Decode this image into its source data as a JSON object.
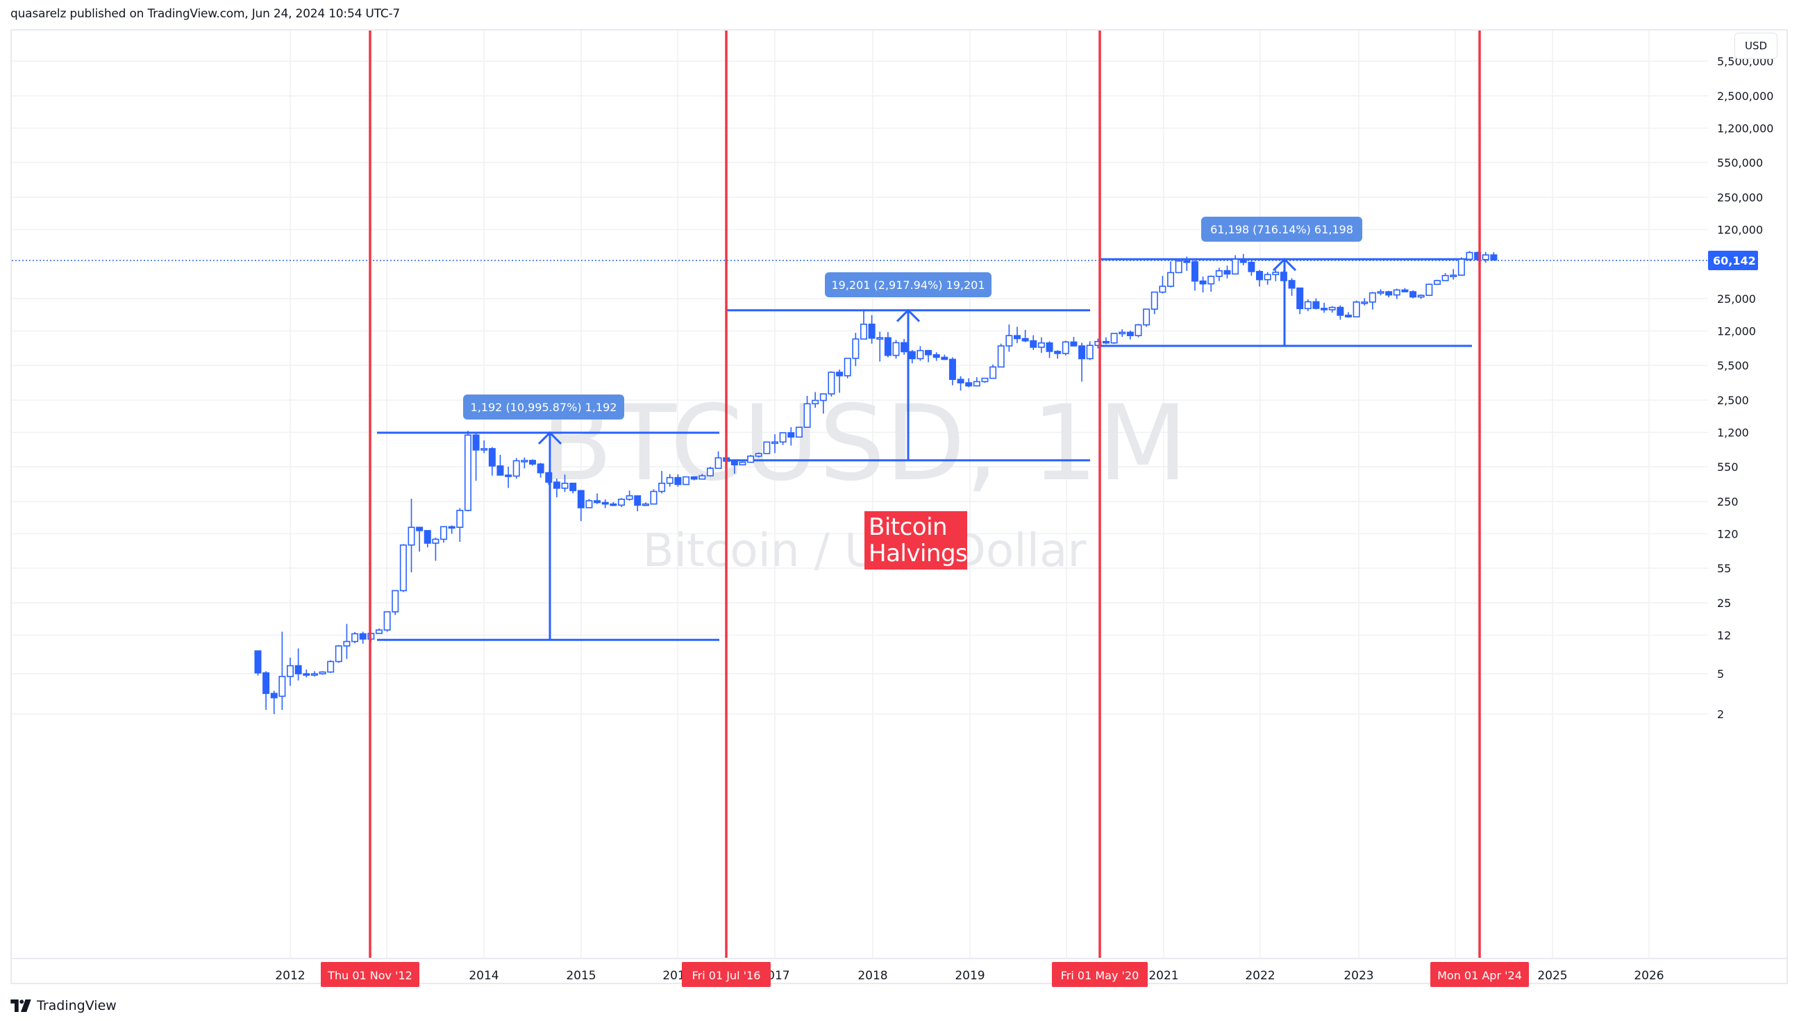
{
  "header": {
    "text": "quasarelz published on TradingView.com, Jun 24, 2024 10:54 UTC-7"
  },
  "footer": {
    "brand": "TradingView",
    "logo_icon": "tradingview-logo-icon"
  },
  "price_axis": {
    "currency_button": "USD",
    "ticks": [
      "5,500,000",
      "2,500,000",
      "1,200,000",
      "550,000",
      "250,000",
      "120,000",
      "25,000",
      "12,000",
      "5,500",
      "2,500",
      "1,200",
      "550",
      "250",
      "120",
      "55",
      "25",
      "12",
      "5",
      "2"
    ],
    "last_price_label": "60,142"
  },
  "time_axis": {
    "ticks": [
      "2012",
      "2014",
      "2015",
      "2016",
      "2017",
      "2018",
      "2019",
      "2021",
      "2022",
      "2023",
      "2025",
      "2026"
    ]
  },
  "watermark": {
    "symbol": "BTCUSD, 1M",
    "description": "Bitcoin / U.S. Dollar"
  },
  "annotation": {
    "text": "Bitcoin Halvings",
    "line1": "Bitcoin",
    "line2": "Halvings"
  },
  "halvings": [
    {
      "label": "Thu 01 Nov '12"
    },
    {
      "label": "Fri 01 Jul '16"
    },
    {
      "label": "Fri 01 May '20"
    },
    {
      "label": "Mon 01 Apr '24"
    }
  ],
  "measurements": [
    {
      "label": "1,192 (10,995.87%) 1,192"
    },
    {
      "label": "19,201 (2,917.94%) 19,201"
    },
    {
      "label": "61,198 (716.14%) 61,198"
    }
  ],
  "colors": {
    "candle": "#2962ff",
    "halving_line": "#f23645",
    "measure_line": "#2962ff",
    "measure_label_bg": "#5b8fe6",
    "last_price_bg": "#2962ff",
    "grid": "#f0f1f4",
    "watermark": "#e7e8ec"
  },
  "chart_data": {
    "type": "candlestick",
    "title": "BTCUSD, 1M — Bitcoin / U.S. Dollar",
    "xlabel": "",
    "ylabel": "USD",
    "y_scale": "log",
    "ylim": [
      2,
      5500000
    ],
    "x_range": [
      "2011-06",
      "2026-06"
    ],
    "grid": true,
    "last_price": 60142,
    "x_ticks": [
      "2012",
      "2014",
      "2015",
      "2016",
      "2017",
      "2018",
      "2019",
      "2021",
      "2022",
      "2023",
      "2025",
      "2026"
    ],
    "y_ticks": [
      2,
      5,
      12,
      25,
      55,
      120,
      250,
      550,
      1200,
      2500,
      5500,
      12000,
      25000,
      60142,
      120000,
      250000,
      550000,
      1200000,
      2500000
    ],
    "halving_dates": [
      "2012-11-01",
      "2016-07-01",
      "2020-05-01",
      "2024-04-01"
    ],
    "measurements": [
      {
        "from_price": 10.8,
        "to_price": 1192,
        "change": 1192,
        "percent": 10995.87,
        "x_start": "2012-11",
        "x_end": "2016-07"
      },
      {
        "from_price": 636,
        "to_price": 19201,
        "change": 19201,
        "percent": 2917.94,
        "x_start": "2016-07",
        "x_end": "2020-05"
      },
      {
        "from_price": 8546,
        "to_price": 61198,
        "change": 61198,
        "percent": 716.14,
        "x_start": "2020-05",
        "x_end": "2024-04"
      }
    ],
    "ohlc": [
      [
        "2011-09",
        8.4,
        8.4,
        4.8,
        5.1
      ],
      [
        "2011-10",
        5.1,
        5.3,
        2.2,
        3.2
      ],
      [
        "2011-11",
        3.2,
        3.4,
        2.0,
        2.9
      ],
      [
        "2011-12",
        3.0,
        13.0,
        2.2,
        4.7
      ],
      [
        "2012-01",
        4.7,
        7.2,
        3.8,
        6.0
      ],
      [
        "2012-02",
        6.0,
        8.9,
        4.3,
        5.0
      ],
      [
        "2012-03",
        5.0,
        5.5,
        4.6,
        4.9
      ],
      [
        "2012-04",
        4.9,
        5.3,
        4.7,
        5.0
      ],
      [
        "2012-05",
        5.0,
        5.3,
        4.9,
        5.2
      ],
      [
        "2012-06",
        5.2,
        6.8,
        5.1,
        6.6
      ],
      [
        "2012-07",
        6.6,
        9.6,
        6.4,
        9.4
      ],
      [
        "2012-08",
        9.4,
        15.5,
        7.0,
        10.4
      ],
      [
        "2012-09",
        10.4,
        12.9,
        10.0,
        12.4
      ],
      [
        "2012-10",
        12.4,
        13.0,
        9.9,
        11.0
      ],
      [
        "2012-11",
        11.0,
        12.8,
        10.3,
        12.5
      ],
      [
        "2012-12",
        12.5,
        14.0,
        12.5,
        13.5
      ],
      [
        "2013-01",
        13.5,
        20.5,
        13.0,
        20.4
      ],
      [
        "2013-02",
        20.4,
        33.0,
        19.0,
        33.0
      ],
      [
        "2013-03",
        33.0,
        95.0,
        32.0,
        93.0
      ],
      [
        "2013-04",
        93.0,
        266.0,
        50.0,
        139.0
      ],
      [
        "2013-05",
        139.0,
        140.0,
        80.0,
        129.0
      ],
      [
        "2013-06",
        129.0,
        130.0,
        88.0,
        97.0
      ],
      [
        "2013-07",
        97.0,
        110.0,
        65.0,
        106.0
      ],
      [
        "2013-08",
        106.0,
        140.0,
        98.0,
        141.0
      ],
      [
        "2013-09",
        141.0,
        145.0,
        120.0,
        139.0
      ],
      [
        "2013-10",
        139.0,
        215.0,
        100.0,
        204.0
      ],
      [
        "2013-11",
        204.0,
        1242.0,
        200.0,
        1129.0
      ],
      [
        "2013-12",
        1129.0,
        1163.0,
        400.0,
        805.0
      ],
      [
        "2014-01",
        805.0,
        1000.0,
        750.0,
        830.0
      ],
      [
        "2014-02",
        830.0,
        860.0,
        450.0,
        560.0
      ],
      [
        "2014-03",
        560.0,
        720.0,
        450.0,
        455.0
      ],
      [
        "2014-04",
        455.0,
        550.0,
        340.0,
        445.0
      ],
      [
        "2014-05",
        445.0,
        670.0,
        420.0,
        630.0
      ],
      [
        "2014-06",
        630.0,
        680.0,
        530.0,
        635.0
      ],
      [
        "2014-07",
        635.0,
        650.0,
        565.0,
        585.0
      ],
      [
        "2014-08",
        585.0,
        600.0,
        430.0,
        480.0
      ],
      [
        "2014-09",
        480.0,
        490.0,
        365.0,
        388.0
      ],
      [
        "2014-10",
        388.0,
        420.0,
        275.0,
        338.0
      ],
      [
        "2014-11",
        338.0,
        460.0,
        310.0,
        378.0
      ],
      [
        "2014-12",
        378.0,
        380.0,
        300.0,
        320.0
      ],
      [
        "2015-01",
        320.0,
        320.0,
        160.0,
        217.0
      ],
      [
        "2015-02",
        217.0,
        265.0,
        215.0,
        254.0
      ],
      [
        "2015-03",
        254.0,
        300.0,
        236.0,
        244.0
      ],
      [
        "2015-04",
        244.0,
        262.0,
        215.0,
        236.0
      ],
      [
        "2015-05",
        236.0,
        247.0,
        225.0,
        230.0
      ],
      [
        "2015-06",
        230.0,
        270.0,
        220.0,
        263.0
      ],
      [
        "2015-07",
        263.0,
        320.0,
        255.0,
        284.0
      ],
      [
        "2015-08",
        284.0,
        286.0,
        200.0,
        230.0
      ],
      [
        "2015-09",
        230.0,
        245.0,
        225.0,
        236.0
      ],
      [
        "2015-10",
        236.0,
        330.0,
        235.0,
        314.0
      ],
      [
        "2015-11",
        314.0,
        500.0,
        300.0,
        378.0
      ],
      [
        "2015-12",
        378.0,
        465.0,
        350.0,
        430.0
      ],
      [
        "2016-01",
        430.0,
        463.0,
        350.0,
        368.0
      ],
      [
        "2016-02",
        368.0,
        440.0,
        368.0,
        437.0
      ],
      [
        "2016-03",
        437.0,
        440.0,
        404.0,
        416.0
      ],
      [
        "2016-04",
        416.0,
        468.0,
        414.0,
        448.0
      ],
      [
        "2016-05",
        448.0,
        550.0,
        440.0,
        531.0
      ],
      [
        "2016-06",
        531.0,
        780.0,
        530.0,
        673.0
      ],
      [
        "2016-07",
        673.0,
        700.0,
        600.0,
        624.0
      ],
      [
        "2016-08",
        624.0,
        625.0,
        470.0,
        575.0
      ],
      [
        "2016-09",
        575.0,
        620.0,
        570.0,
        609.0
      ],
      [
        "2016-10",
        609.0,
        720.0,
        605.0,
        700.0
      ],
      [
        "2016-11",
        700.0,
        760.0,
        680.0,
        742.0
      ],
      [
        "2016-12",
        742.0,
        975.0,
        740.0,
        964.0
      ],
      [
        "2017-01",
        964.0,
        1150.0,
        750.0,
        965.0
      ],
      [
        "2017-02",
        965.0,
        1200.0,
        900.0,
        1190.0
      ],
      [
        "2017-03",
        1190.0,
        1350.0,
        890.0,
        1080.0
      ],
      [
        "2017-04",
        1080.0,
        1350.0,
        1070.0,
        1348.0
      ],
      [
        "2017-05",
        1348.0,
        2750.0,
        1340.0,
        2300.0
      ],
      [
        "2017-06",
        2300.0,
        3000.0,
        2100.0,
        2480.0
      ],
      [
        "2017-07",
        2480.0,
        2900.0,
        1840.0,
        2875.0
      ],
      [
        "2017-08",
        2875.0,
        4800.0,
        2700.0,
        4700.0
      ],
      [
        "2017-09",
        4700.0,
        5000.0,
        2950.0,
        4340.0
      ],
      [
        "2017-10",
        4340.0,
        6470.0,
        4100.0,
        6450.0
      ],
      [
        "2017-11",
        6450.0,
        11500.0,
        5400.0,
        10000.0
      ],
      [
        "2017-12",
        10000.0,
        19666.0,
        10000.0,
        14000.0
      ],
      [
        "2018-01",
        14000.0,
        17200.0,
        9000.0,
        10200.0
      ],
      [
        "2018-02",
        10200.0,
        11800.0,
        6000.0,
        10300.0
      ],
      [
        "2018-03",
        10300.0,
        11700.0,
        6600.0,
        6900.0
      ],
      [
        "2018-04",
        6900.0,
        9800.0,
        6400.0,
        9200.0
      ],
      [
        "2018-05",
        9200.0,
        10000.0,
        7000.0,
        7500.0
      ],
      [
        "2018-06",
        7500.0,
        7800.0,
        5750.0,
        6400.0
      ],
      [
        "2018-07",
        6400.0,
        8500.0,
        6100.0,
        7700.0
      ],
      [
        "2018-08",
        7700.0,
        7800.0,
        5900.0,
        7000.0
      ],
      [
        "2018-09",
        7000.0,
        7400.0,
        6100.0,
        6600.0
      ],
      [
        "2018-10",
        6600.0,
        7000.0,
        6200.0,
        6300.0
      ],
      [
        "2018-11",
        6300.0,
        6600.0,
        3500.0,
        4000.0
      ],
      [
        "2018-12",
        4000.0,
        4300.0,
        3100.0,
        3700.0
      ],
      [
        "2019-01",
        3700.0,
        4100.0,
        3350.0,
        3450.0
      ],
      [
        "2019-02",
        3450.0,
        4200.0,
        3400.0,
        3800.0
      ],
      [
        "2019-03",
        3800.0,
        4100.0,
        3700.0,
        4100.0
      ],
      [
        "2019-04",
        4100.0,
        5600.0,
        4100.0,
        5300.0
      ],
      [
        "2019-05",
        5300.0,
        9000.0,
        5300.0,
        8550.0
      ],
      [
        "2019-06",
        8550.0,
        13900.0,
        7500.0,
        10800.0
      ],
      [
        "2019-07",
        10800.0,
        13200.0,
        9100.0,
        10100.0
      ],
      [
        "2019-08",
        10100.0,
        12300.0,
        9300.0,
        9600.0
      ],
      [
        "2019-09",
        9600.0,
        10900.0,
        7800.0,
        8300.0
      ],
      [
        "2019-10",
        8300.0,
        10400.0,
        7300.0,
        9150.0
      ],
      [
        "2019-11",
        9150.0,
        9500.0,
        6500.0,
        7550.0
      ],
      [
        "2019-12",
        7550.0,
        7750.0,
        6400.0,
        7200.0
      ],
      [
        "2020-01",
        7200.0,
        9600.0,
        6900.0,
        9350.0
      ],
      [
        "2020-02",
        9350.0,
        10500.0,
        8500.0,
        8550.0
      ],
      [
        "2020-03",
        8550.0,
        9200.0,
        3800.0,
        6400.0
      ],
      [
        "2020-04",
        6400.0,
        9500.0,
        6200.0,
        8650.0
      ],
      [
        "2020-05",
        8650.0,
        10080.0,
        8100.0,
        9450.0
      ],
      [
        "2020-06",
        9450.0,
        10400.0,
        8900.0,
        9150.0
      ],
      [
        "2020-07",
        9150.0,
        11450.0,
        8950.0,
        11350.0
      ],
      [
        "2020-08",
        11350.0,
        12480.0,
        10500.0,
        11650.0
      ],
      [
        "2020-09",
        11650.0,
        12100.0,
        9900.0,
        10800.0
      ],
      [
        "2020-10",
        10800.0,
        14100.0,
        10400.0,
        13800.0
      ],
      [
        "2020-11",
        13800.0,
        19900.0,
        13200.0,
        19700.0
      ],
      [
        "2020-12",
        19700.0,
        29300.0,
        17600.0,
        29000.0
      ],
      [
        "2021-01",
        29000.0,
        41950.0,
        28100.0,
        33100.0
      ],
      [
        "2021-02",
        33100.0,
        58350.0,
        32300.0,
        45200.0
      ],
      [
        "2021-03",
        45200.0,
        61800.0,
        44950.0,
        58800.0
      ],
      [
        "2021-04",
        58800.0,
        64900.0,
        47000.0,
        57700.0
      ],
      [
        "2021-05",
        57700.0,
        59500.0,
        30000.0,
        37300.0
      ],
      [
        "2021-06",
        37300.0,
        41300.0,
        28800.0,
        35000.0
      ],
      [
        "2021-07",
        35000.0,
        42400.0,
        29300.0,
        41500.0
      ],
      [
        "2021-08",
        41500.0,
        50500.0,
        37300.0,
        47100.0
      ],
      [
        "2021-09",
        47100.0,
        52950.0,
        39600.0,
        43800.0
      ],
      [
        "2021-10",
        43800.0,
        67000.0,
        43300.0,
        61300.0
      ],
      [
        "2021-11",
        61300.0,
        69000.0,
        53300.0,
        57000.0
      ],
      [
        "2021-12",
        57000.0,
        59100.0,
        42000.0,
        46300.0
      ],
      [
        "2022-01",
        46300.0,
        47900.0,
        32950.0,
        38500.0
      ],
      [
        "2022-02",
        38500.0,
        45800.0,
        34300.0,
        43200.0
      ],
      [
        "2022-03",
        43200.0,
        48200.0,
        37200.0,
        45500.0
      ],
      [
        "2022-04",
        45500.0,
        47450.0,
        37600.0,
        37700.0
      ],
      [
        "2022-05",
        37700.0,
        39800.0,
        26700.0,
        31800.0
      ],
      [
        "2022-06",
        31800.0,
        31950.0,
        17600.0,
        19950.0
      ],
      [
        "2022-07",
        19950.0,
        24650.0,
        18800.0,
        23300.0
      ],
      [
        "2022-08",
        23300.0,
        25200.0,
        19550.0,
        20050.0
      ],
      [
        "2022-09",
        20050.0,
        22800.0,
        18150.0,
        19450.0
      ],
      [
        "2022-10",
        19450.0,
        21100.0,
        18200.0,
        20500.0
      ],
      [
        "2022-11",
        20500.0,
        21450.0,
        15500.0,
        17150.0
      ],
      [
        "2022-12",
        17150.0,
        18400.0,
        16250.0,
        16550.0
      ],
      [
        "2023-01",
        16550.0,
        23950.0,
        16500.0,
        23150.0
      ],
      [
        "2023-02",
        23150.0,
        25250.0,
        21400.0,
        23150.0
      ],
      [
        "2023-03",
        23150.0,
        29200.0,
        19550.0,
        28500.0
      ],
      [
        "2023-04",
        28500.0,
        31000.0,
        26950.0,
        29250.0
      ],
      [
        "2023-05",
        29250.0,
        29850.0,
        25800.0,
        27200.0
      ],
      [
        "2023-06",
        27200.0,
        31400.0,
        24800.0,
        30450.0
      ],
      [
        "2023-07",
        30450.0,
        31800.0,
        28850.0,
        29250.0
      ],
      [
        "2023-08",
        29250.0,
        30200.0,
        25150.0,
        26000.0
      ],
      [
        "2023-09",
        26000.0,
        27450.0,
        24900.0,
        26950.0
      ],
      [
        "2023-10",
        26950.0,
        35200.0,
        26550.0,
        34650.0
      ],
      [
        "2023-11",
        34650.0,
        38450.0,
        34100.0,
        37700.0
      ],
      [
        "2023-12",
        37700.0,
        44700.0,
        37600.0,
        42250.0
      ],
      [
        "2024-01",
        42250.0,
        48950.0,
        38550.0,
        42600.0
      ],
      [
        "2024-02",
        42600.0,
        63900.0,
        41850.0,
        61200.0
      ],
      [
        "2024-03",
        61200.0,
        73800.0,
        59100.0,
        71300.0
      ],
      [
        "2024-04",
        71300.0,
        72800.0,
        59200.0,
        60650.0
      ],
      [
        "2024-05",
        60650.0,
        71950.0,
        56550.0,
        67500.0
      ],
      [
        "2024-06",
        67500.0,
        71950.0,
        60000.0,
        60142.0
      ]
    ]
  }
}
